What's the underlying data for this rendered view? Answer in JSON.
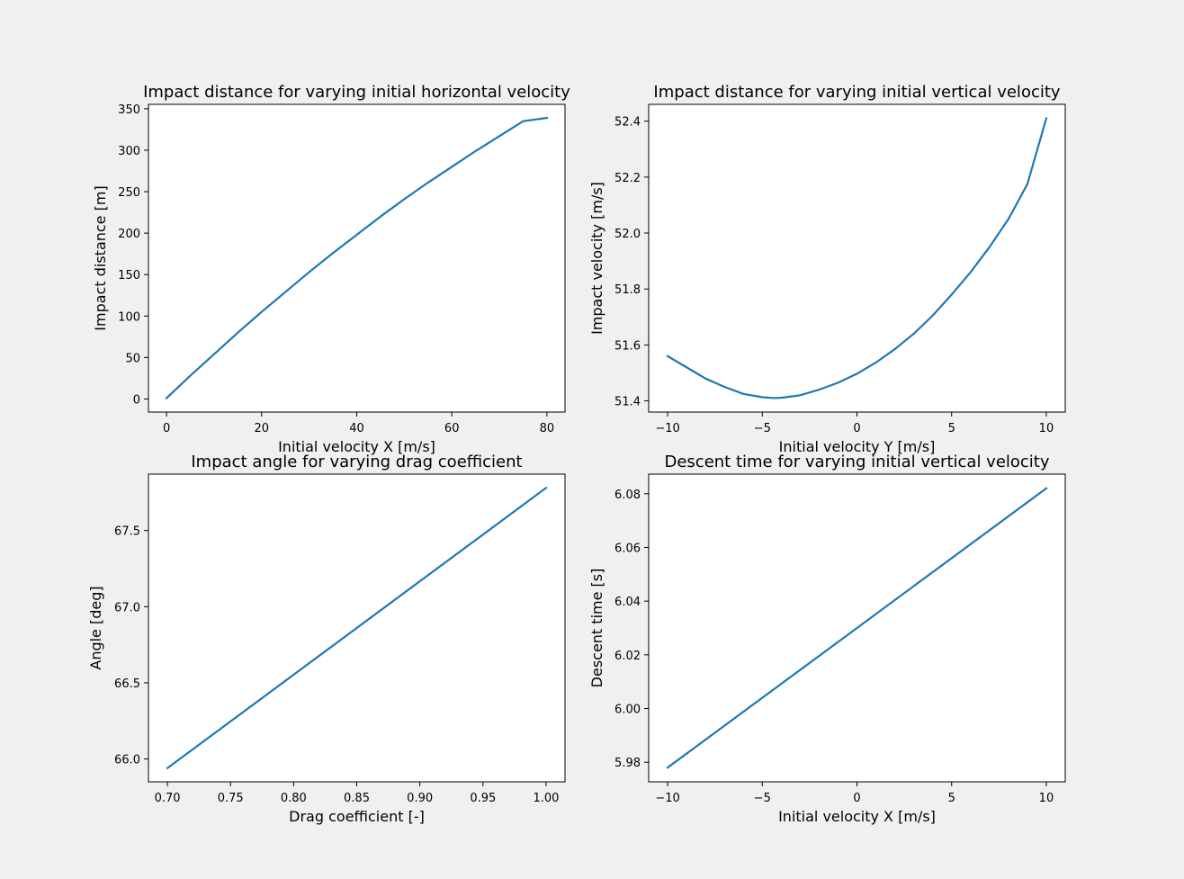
{
  "chart_data": [
    {
      "type": "line",
      "title": "Impact distance for varying initial horizontal velocity",
      "xlabel": "Initial velocity X [m/s]",
      "ylabel": "Impact distance [m]",
      "xlim": [
        -3.8,
        83.8
      ],
      "ylim": [
        -15.8,
        355.3
      ],
      "xticks": [
        0,
        20,
        40,
        60,
        80
      ],
      "yticks": [
        0,
        50,
        100,
        150,
        200,
        250,
        300,
        350
      ],
      "xtick_labels": [
        "0",
        "20",
        "40",
        "60",
        "80"
      ],
      "ytick_labels": [
        "0",
        "50",
        "100",
        "150",
        "200",
        "250",
        "300",
        "350"
      ],
      "grid": false,
      "series": [
        {
          "color": "#1f77b4",
          "x": [
            0,
            5,
            10,
            15,
            20,
            25,
            30,
            35,
            40,
            45,
            50,
            55,
            60,
            65,
            70,
            75,
            80
          ],
          "y": [
            1,
            28,
            54,
            80,
            105,
            129,
            153,
            176,
            198,
            220,
            241,
            261,
            280,
            299,
            317,
            335,
            339
          ]
        }
      ]
    },
    {
      "type": "line",
      "title": "Impact distance for varying initial vertical velocity",
      "xlabel": "Initial velocity Y [m/s]",
      "ylabel": "Impact velocity [m/s]",
      "xlim": [
        -11,
        11
      ],
      "ylim": [
        51.36,
        52.46
      ],
      "xticks": [
        -10,
        -5,
        0,
        5,
        10
      ],
      "yticks": [
        51.4,
        51.6,
        51.8,
        52.0,
        52.2,
        52.4
      ],
      "xtick_labels": [
        "−10",
        "−5",
        "0",
        "5",
        "10"
      ],
      "ytick_labels": [
        "51.4",
        "51.6",
        "51.8",
        "52.0",
        "52.2",
        "52.4"
      ],
      "grid": false,
      "series": [
        {
          "color": "#1f77b4",
          "x": [
            -10,
            -9,
            -8,
            -7,
            -6,
            -5,
            -4.4,
            -4,
            -3,
            -2,
            -1,
            0,
            1,
            2,
            3,
            4,
            5,
            6,
            7,
            8,
            9,
            10
          ],
          "y": [
            51.56,
            51.52,
            51.48,
            51.45,
            51.425,
            51.413,
            51.41,
            51.411,
            51.42,
            51.44,
            51.465,
            51.497,
            51.537,
            51.585,
            51.64,
            51.705,
            51.78,
            51.86,
            51.95,
            52.05,
            52.175,
            52.41
          ]
        }
      ]
    },
    {
      "type": "line",
      "title": "Impact angle for varying drag coefficient",
      "xlabel": "Drag coefficient [-]",
      "ylabel": "Angle [deg]",
      "xlim": [
        0.685,
        1.015
      ],
      "ylim": [
        65.85,
        67.87
      ],
      "xticks": [
        0.7,
        0.75,
        0.8,
        0.85,
        0.9,
        0.95,
        1.0
      ],
      "yticks": [
        66.0,
        66.5,
        67.0,
        67.5
      ],
      "xtick_labels": [
        "0.70",
        "0.75",
        "0.80",
        "0.85",
        "0.90",
        "0.95",
        "1.00"
      ],
      "ytick_labels": [
        "66.0",
        "66.5",
        "67.0",
        "67.5"
      ],
      "grid": false,
      "series": [
        {
          "color": "#1f77b4",
          "x": [
            0.7,
            1.0
          ],
          "y": [
            65.94,
            67.78
          ]
        }
      ]
    },
    {
      "type": "line",
      "title": "Descent time for varying initial vertical velocity",
      "xlabel": "Initial velocity X [m/s]",
      "ylabel": "Descent time [s]",
      "xlim": [
        -11,
        11
      ],
      "ylim": [
        5.9727,
        6.0873
      ],
      "xticks": [
        -10,
        -5,
        0,
        5,
        10
      ],
      "yticks": [
        5.98,
        6.0,
        6.02,
        6.04,
        6.06,
        6.08
      ],
      "xtick_labels": [
        "−10",
        "−5",
        "0",
        "5",
        "10"
      ],
      "ytick_labels": [
        "5.98",
        "6.00",
        "6.02",
        "6.04",
        "6.06",
        "6.08"
      ],
      "grid": false,
      "series": [
        {
          "color": "#1f77b4",
          "x": [
            -10,
            10
          ],
          "y": [
            5.978,
            6.082
          ]
        }
      ]
    }
  ]
}
